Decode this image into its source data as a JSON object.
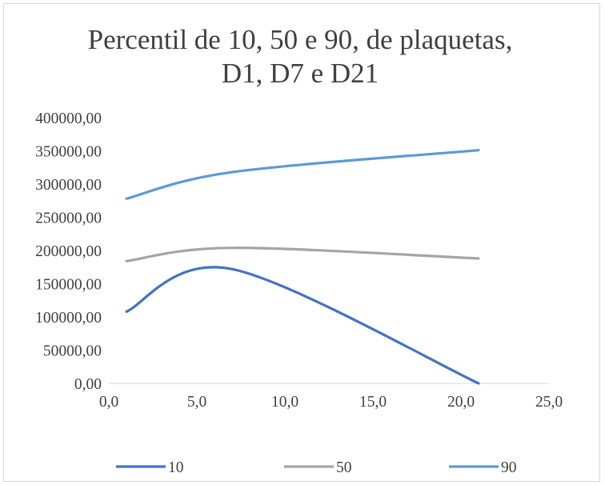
{
  "chart_data": {
    "type": "line",
    "title_lines": [
      "Percentil de 10, 50 e 90, de plaquetas,",
      "D1, D7 e D21"
    ],
    "xlabel": "",
    "ylabel": "",
    "xlim": [
      0,
      25
    ],
    "ylim": [
      0,
      400000
    ],
    "x_ticks": [
      0,
      5,
      10,
      15,
      20,
      25
    ],
    "x_tick_labels": [
      "0,0",
      "5,0",
      "10,0",
      "15,0",
      "20,0",
      "25,0"
    ],
    "y_ticks": [
      0,
      50000,
      100000,
      150000,
      200000,
      250000,
      300000,
      350000,
      400000
    ],
    "y_tick_labels": [
      "0,00",
      "50000,00",
      "100000,00",
      "150000,00",
      "200000,00",
      "250000,00",
      "300000,00",
      "350000,00",
      "400000,00"
    ],
    "grid": false,
    "smooth": true,
    "legend_position": "bottom",
    "series": [
      {
        "name": "10",
        "color": "#4472c4",
        "x": [
          1,
          7,
          21
        ],
        "y": [
          108000,
          172000,
          0
        ]
      },
      {
        "name": "50",
        "color": "#a5a5a5",
        "x": [
          1,
          7,
          21
        ],
        "y": [
          184000,
          204000,
          188000
        ]
      },
      {
        "name": "90",
        "color": "#5b9bd5",
        "x": [
          1,
          7,
          21
        ],
        "y": [
          278000,
          318000,
          351000
        ]
      }
    ]
  }
}
